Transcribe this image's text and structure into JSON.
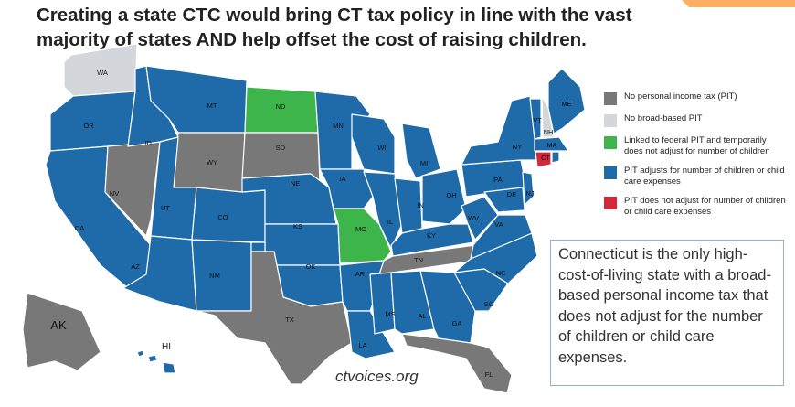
{
  "title": "Creating a state CTC would bring CT tax policy in line with the vast majority of states AND help offset the cost of raising children.",
  "colors": {
    "no_pit": "#787878",
    "no_broad": "#d3d6da",
    "linked": "#3db54a",
    "adjusts": "#1f6aa9",
    "no_adjust": "#d1283a",
    "accent": "#fdae61"
  },
  "legend": [
    {
      "key": "no_pit",
      "label": "No personal income tax (PIT)"
    },
    {
      "key": "no_broad",
      "label": "No broad-based PIT"
    },
    {
      "key": "linked",
      "label": "Linked to federal PIT and temporarily does not adjust for number of children"
    },
    {
      "key": "adjusts",
      "label": "PIT adjusts for number of children or child care expenses"
    },
    {
      "key": "no_adjust",
      "label": "PIT does not adjust for number of children or child care expenses"
    }
  ],
  "states": {
    "WA": "no_broad",
    "OR": "adjusts",
    "CA": "adjusts",
    "NV": "no_pit",
    "ID": "adjusts",
    "MT": "adjusts",
    "WY": "no_pit",
    "UT": "adjusts",
    "AZ": "adjusts",
    "NM": "adjusts",
    "CO": "adjusts",
    "ND": "linked",
    "SD": "no_pit",
    "NE": "adjusts",
    "KS": "adjusts",
    "OK": "adjusts",
    "TX": "no_pit",
    "MN": "adjusts",
    "IA": "adjusts",
    "MO": "linked",
    "AR": "adjusts",
    "LA": "adjusts",
    "WI": "adjusts",
    "IL": "adjusts",
    "MI": "adjusts",
    "IN": "adjusts",
    "OH": "adjusts",
    "KY": "adjusts",
    "TN": "no_pit",
    "MS": "adjusts",
    "AL": "adjusts",
    "GA": "adjusts",
    "FL": "no_pit",
    "SC": "adjusts",
    "NC": "adjusts",
    "VA": "adjusts",
    "WV": "adjusts",
    "PA": "adjusts",
    "NY": "adjusts",
    "NJ": "adjusts",
    "DE": "adjusts",
    "VT": "adjusts",
    "NH": "no_broad",
    "ME": "adjusts",
    "MA": "adjusts",
    "CT": "no_adjust",
    "RI": "adjusts",
    "AK": "no_pit",
    "HI": "adjusts"
  },
  "callout": "Connecticut is the only high-cost-of-living state with a broad-based personal income tax that does not adjust for the number of children or child care expenses.",
  "source": "ctvoices.org"
}
